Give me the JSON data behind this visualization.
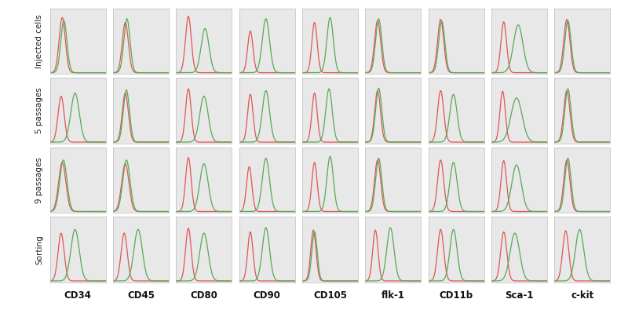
{
  "rows": [
    "Injected cells",
    "5 passages",
    "9 passages",
    "Sorting"
  ],
  "cols": [
    "CD34",
    "CD45",
    "CD80",
    "CD90",
    "CD105",
    "flk-1",
    "CD11b",
    "Sca-1",
    "c-kit"
  ],
  "cell_bg": "#e8e8e8",
  "fig_bg": "#ffffff",
  "red_color": "#e05555",
  "green_color": "#55aa55",
  "cell_data": {
    "Injected cells": {
      "CD34": {
        "red": {
          "mu": 0.22,
          "sigma": 0.055,
          "amp": 0.9
        },
        "green": {
          "mu": 0.25,
          "sigma": 0.055,
          "amp": 0.85
        }
      },
      "CD45": {
        "red": {
          "mu": 0.22,
          "sigma": 0.055,
          "amp": 0.82
        },
        "green": {
          "mu": 0.25,
          "sigma": 0.055,
          "amp": 0.88
        }
      },
      "CD80": {
        "red": {
          "mu": 0.22,
          "sigma": 0.052,
          "amp": 0.92
        },
        "green": {
          "mu": 0.52,
          "sigma": 0.07,
          "amp": 0.72
        }
      },
      "CD90": {
        "red": {
          "mu": 0.2,
          "sigma": 0.048,
          "amp": 0.68
        },
        "green": {
          "mu": 0.48,
          "sigma": 0.065,
          "amp": 0.88
        }
      },
      "CD105": {
        "red": {
          "mu": 0.22,
          "sigma": 0.048,
          "amp": 0.82
        },
        "green": {
          "mu": 0.5,
          "sigma": 0.058,
          "amp": 0.9
        }
      },
      "flk-1": {
        "red": {
          "mu": 0.22,
          "sigma": 0.055,
          "amp": 0.85
        },
        "green": {
          "mu": 0.24,
          "sigma": 0.055,
          "amp": 0.88
        }
      },
      "CD11b": {
        "red": {
          "mu": 0.22,
          "sigma": 0.055,
          "amp": 0.87
        },
        "green": {
          "mu": 0.24,
          "sigma": 0.055,
          "amp": 0.84
        }
      },
      "Sca-1": {
        "red": {
          "mu": 0.22,
          "sigma": 0.05,
          "amp": 0.83
        },
        "green": {
          "mu": 0.48,
          "sigma": 0.085,
          "amp": 0.78
        }
      },
      "c-kit": {
        "red": {
          "mu": 0.22,
          "sigma": 0.055,
          "amp": 0.87
        },
        "green": {
          "mu": 0.24,
          "sigma": 0.055,
          "amp": 0.85
        }
      }
    },
    "5 passages": {
      "CD34": {
        "red": {
          "mu": 0.2,
          "sigma": 0.055,
          "amp": 0.75
        },
        "green": {
          "mu": 0.45,
          "sigma": 0.075,
          "amp": 0.8
        }
      },
      "CD45": {
        "red": {
          "mu": 0.22,
          "sigma": 0.055,
          "amp": 0.8
        },
        "green": {
          "mu": 0.24,
          "sigma": 0.055,
          "amp": 0.85
        }
      },
      "CD80": {
        "red": {
          "mu": 0.22,
          "sigma": 0.05,
          "amp": 0.87
        },
        "green": {
          "mu": 0.5,
          "sigma": 0.075,
          "amp": 0.75
        }
      },
      "CD90": {
        "red": {
          "mu": 0.2,
          "sigma": 0.048,
          "amp": 0.78
        },
        "green": {
          "mu": 0.48,
          "sigma": 0.065,
          "amp": 0.84
        }
      },
      "CD105": {
        "red": {
          "mu": 0.22,
          "sigma": 0.048,
          "amp": 0.8
        },
        "green": {
          "mu": 0.48,
          "sigma": 0.058,
          "amp": 0.87
        }
      },
      "flk-1": {
        "red": {
          "mu": 0.22,
          "sigma": 0.052,
          "amp": 0.84
        },
        "green": {
          "mu": 0.24,
          "sigma": 0.055,
          "amp": 0.88
        }
      },
      "CD11b": {
        "red": {
          "mu": 0.22,
          "sigma": 0.055,
          "amp": 0.84
        },
        "green": {
          "mu": 0.45,
          "sigma": 0.065,
          "amp": 0.78
        }
      },
      "Sca-1": {
        "red": {
          "mu": 0.2,
          "sigma": 0.048,
          "amp": 0.83
        },
        "green": {
          "mu": 0.45,
          "sigma": 0.1,
          "amp": 0.72
        }
      },
      "c-kit": {
        "red": {
          "mu": 0.22,
          "sigma": 0.055,
          "amp": 0.84
        },
        "green": {
          "mu": 0.24,
          "sigma": 0.055,
          "amp": 0.87
        }
      }
    },
    "9 passages": {
      "CD34": {
        "red": {
          "mu": 0.22,
          "sigma": 0.065,
          "amp": 0.8
        },
        "green": {
          "mu": 0.24,
          "sigma": 0.065,
          "amp": 0.84
        }
      },
      "CD45": {
        "red": {
          "mu": 0.22,
          "sigma": 0.065,
          "amp": 0.78
        },
        "green": {
          "mu": 0.24,
          "sigma": 0.065,
          "amp": 0.84
        }
      },
      "CD80": {
        "red": {
          "mu": 0.22,
          "sigma": 0.05,
          "amp": 0.88
        },
        "green": {
          "mu": 0.5,
          "sigma": 0.075,
          "amp": 0.78
        }
      },
      "CD90": {
        "red": {
          "mu": 0.18,
          "sigma": 0.048,
          "amp": 0.73
        },
        "green": {
          "mu": 0.48,
          "sigma": 0.065,
          "amp": 0.87
        }
      },
      "CD105": {
        "red": {
          "mu": 0.22,
          "sigma": 0.048,
          "amp": 0.8
        },
        "green": {
          "mu": 0.5,
          "sigma": 0.058,
          "amp": 0.9
        }
      },
      "flk-1": {
        "red": {
          "mu": 0.22,
          "sigma": 0.055,
          "amp": 0.84
        },
        "green": {
          "mu": 0.24,
          "sigma": 0.055,
          "amp": 0.87
        }
      },
      "CD11b": {
        "red": {
          "mu": 0.22,
          "sigma": 0.055,
          "amp": 0.84
        },
        "green": {
          "mu": 0.45,
          "sigma": 0.065,
          "amp": 0.8
        }
      },
      "Sca-1": {
        "red": {
          "mu": 0.22,
          "sigma": 0.05,
          "amp": 0.83
        },
        "green": {
          "mu": 0.45,
          "sigma": 0.085,
          "amp": 0.76
        }
      },
      "c-kit": {
        "red": {
          "mu": 0.22,
          "sigma": 0.055,
          "amp": 0.84
        },
        "green": {
          "mu": 0.24,
          "sigma": 0.055,
          "amp": 0.87
        }
      }
    },
    "Sorting": {
      "CD34": {
        "red": {
          "mu": 0.2,
          "sigma": 0.055,
          "amp": 0.78
        },
        "green": {
          "mu": 0.45,
          "sigma": 0.075,
          "amp": 0.84
        }
      },
      "CD45": {
        "red": {
          "mu": 0.2,
          "sigma": 0.055,
          "amp": 0.78
        },
        "green": {
          "mu": 0.45,
          "sigma": 0.075,
          "amp": 0.84
        }
      },
      "CD80": {
        "red": {
          "mu": 0.22,
          "sigma": 0.05,
          "amp": 0.86
        },
        "green": {
          "mu": 0.5,
          "sigma": 0.075,
          "amp": 0.78
        }
      },
      "CD90": {
        "red": {
          "mu": 0.2,
          "sigma": 0.048,
          "amp": 0.8
        },
        "green": {
          "mu": 0.48,
          "sigma": 0.065,
          "amp": 0.87
        }
      },
      "CD105": {
        "red": {
          "mu": 0.2,
          "sigma": 0.048,
          "amp": 0.83
        },
        "green": {
          "mu": 0.22,
          "sigma": 0.048,
          "amp": 0.8
        }
      },
      "flk-1": {
        "red": {
          "mu": 0.18,
          "sigma": 0.048,
          "amp": 0.83
        },
        "green": {
          "mu": 0.45,
          "sigma": 0.065,
          "amp": 0.87
        }
      },
      "CD11b": {
        "red": {
          "mu": 0.22,
          "sigma": 0.055,
          "amp": 0.84
        },
        "green": {
          "mu": 0.45,
          "sigma": 0.065,
          "amp": 0.84
        }
      },
      "Sca-1": {
        "red": {
          "mu": 0.22,
          "sigma": 0.055,
          "amp": 0.8
        },
        "green": {
          "mu": 0.42,
          "sigma": 0.085,
          "amp": 0.78
        }
      },
      "c-kit": {
        "red": {
          "mu": 0.2,
          "sigma": 0.055,
          "amp": 0.82
        },
        "green": {
          "mu": 0.45,
          "sigma": 0.075,
          "amp": 0.84
        }
      }
    }
  }
}
